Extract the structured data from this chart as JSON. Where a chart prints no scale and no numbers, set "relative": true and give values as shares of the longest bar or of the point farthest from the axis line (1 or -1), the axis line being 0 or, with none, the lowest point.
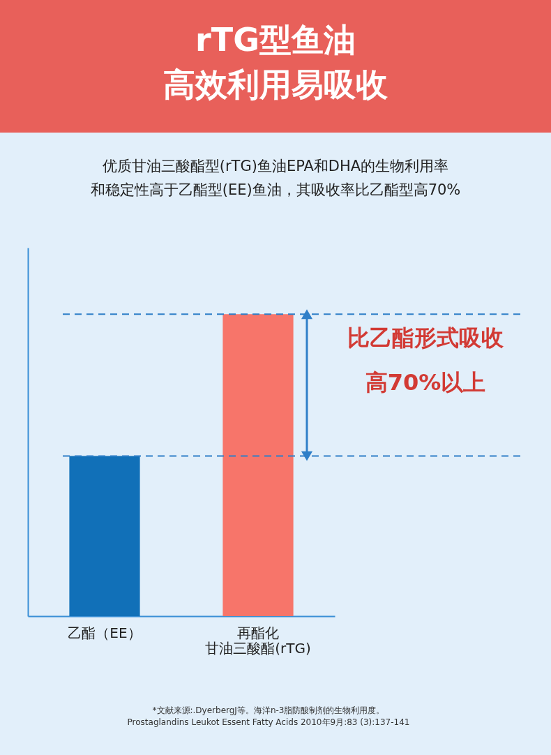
{
  "chart_data": {
    "type": "bar",
    "title": "rTG型鱼油高效利用易吸收",
    "subtitle": "优质甘油三酸酯型(rTG)鱼油EPA和DHA的生物利用率和稳定性高于乙酯型(EE)鱼油，其吸收率比乙酯型高70%",
    "categories": [
      "乙酯（EE）",
      "再酯化甘油三酸酯(rTG)"
    ],
    "values": [
      0.53,
      1
    ],
    "colors": [
      "#1170b8",
      "#f7756a"
    ],
    "relative": true,
    "ref_lines": [
      {
        "axis": "y",
        "value": 1,
        "label": null,
        "color": "#2f7fc8",
        "line_style": "dashed"
      },
      {
        "axis": "y",
        "value": 0.53,
        "label": null,
        "color": "#2f7fc8",
        "line_style": "dashed"
      }
    ],
    "annotations": [
      "比乙酯形式吸收高70%以上",
      "*文献来源:.DyerbergJ等。海洋n-3脂防酸制剂的生物利用度。\nProstaglandins Leukot Essent Fatty Acids 2010年9月:83 (3):137-141"
    ]
  }
}
